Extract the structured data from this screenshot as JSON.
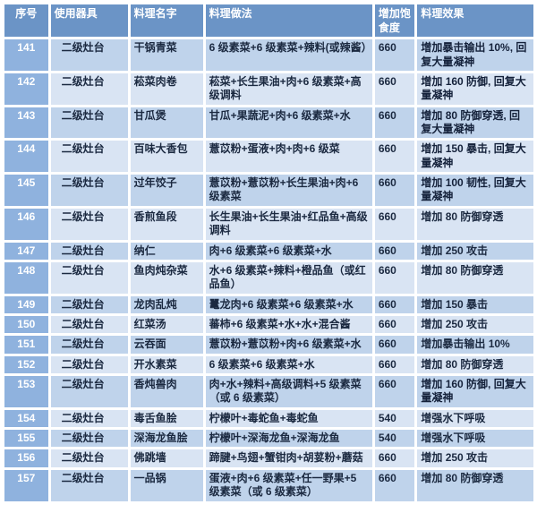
{
  "colors": {
    "header_bg": "#6b94c6",
    "row_number_bg": "#8fb2de",
    "row_odd_bg": "#bfd3eb",
    "row_even_bg": "#d9e4f3",
    "highlight_bg": "#ffff00",
    "text_dark": "#1b2940",
    "text_light": "#ffffff"
  },
  "table": {
    "headers": [
      "序号",
      "使用器具",
      "料理名字",
      "料理做法",
      "增加饱食度",
      "料理效果"
    ],
    "rows": [
      {
        "id": "141",
        "equipment": "二级灶台",
        "name": "干锅青菜",
        "recipe": "6 级素菜+6 级素菜+辣料(或辣酱）",
        "satiety": "660",
        "effect": "增加暴击输出 10%, 回复大量凝神",
        "highlighted": true
      },
      {
        "id": "142",
        "equipment": "二级灶台",
        "name": "菘菜肉卷",
        "recipe": "菘菜+长生果油+肉+6 级素菜+高级调料",
        "satiety": "660",
        "effect": "增加 160 防御, 回复大量凝神",
        "highlighted": true
      },
      {
        "id": "143",
        "equipment": "二级灶台",
        "name": "甘瓜煲",
        "recipe": "甘瓜+果蔬泥+肉+6 级素菜+水",
        "satiety": "660",
        "effect": "增加 80 防御穿透, 回复大量凝神",
        "highlighted": true
      },
      {
        "id": "144",
        "equipment": "二级灶台",
        "name": "百味大香包",
        "recipe": "薏苡粉+蛋液+肉+肉+6 级菜",
        "satiety": "660",
        "effect": "增加 150 暴击, 回复大量凝神",
        "highlighted": true
      },
      {
        "id": "145",
        "equipment": "二级灶台",
        "name": "过年饺子",
        "recipe": "薏苡粉+薏苡粉+长生果油+肉+6 级素菜",
        "satiety": "660",
        "effect": "增加 100 韧性, 回复大量凝神",
        "highlighted": true
      },
      {
        "id": "146",
        "equipment": "二级灶台",
        "name": "香煎鱼段",
        "recipe": "长生果油+长生果油+红品鱼+高级调料",
        "satiety": "660",
        "effect": "增加 80 防御穿透",
        "highlighted": false
      },
      {
        "id": "147",
        "equipment": "二级灶台",
        "name": "纳仁",
        "recipe": "肉+6 级素菜+6 级素菜+水",
        "satiety": "660",
        "effect": "增加 250 攻击",
        "highlighted": false
      },
      {
        "id": "148",
        "equipment": "二级灶台",
        "name": "鱼肉炖杂菜",
        "recipe": "水+6 级素菜+辣料+橙品鱼（或红品鱼）",
        "satiety": "660",
        "effect": "增加 80 防御穿透",
        "highlighted": false
      },
      {
        "id": "149",
        "equipment": "二级灶台",
        "name": "龙肉乱炖",
        "recipe": "鼍龙肉+6 级素菜+6 级素菜+水",
        "satiety": "660",
        "effect": "增加 150 暴击",
        "highlighted": false
      },
      {
        "id": "150",
        "equipment": "二级灶台",
        "name": "红菜汤",
        "recipe": "蕃柿+6 级素菜+水+水+混合酱",
        "satiety": "660",
        "effect": "增加 250 攻击",
        "highlighted": false
      },
      {
        "id": "151",
        "equipment": "二级灶台",
        "name": "云吞面",
        "recipe": "薏苡粉+薏苡粉+肉+6 级素菜+水",
        "satiety": "660",
        "effect": "增加暴击输出 10%",
        "highlighted": false
      },
      {
        "id": "152",
        "equipment": "二级灶台",
        "name": "开水素菜",
        "recipe": "6 级素菜+6 级素菜+水",
        "satiety": "660",
        "effect": "增加 80 防御穿透",
        "highlighted": false
      },
      {
        "id": "153",
        "equipment": "二级灶台",
        "name": "香炖兽肉",
        "recipe": "肉+水+辣料+高级调料+5 级素菜（或 6 级素菜）",
        "satiety": "660",
        "effect": "增加 160 防御, 回复大量凝神",
        "highlighted": true
      },
      {
        "id": "154",
        "equipment": "二级灶台",
        "name": "毒舌鱼脍",
        "recipe": "柠檬叶+毒蛇鱼+毒蛇鱼",
        "satiety": "540",
        "effect": "增强水下呼吸",
        "highlighted": false
      },
      {
        "id": "155",
        "equipment": "二级灶台",
        "name": "深海龙鱼脍",
        "recipe": "柠檬叶+深海龙鱼+深海龙鱼",
        "satiety": "540",
        "effect": "增强水下呼吸",
        "highlighted": false
      },
      {
        "id": "156",
        "equipment": "二级灶台",
        "name": "佛跳墙",
        "recipe": "蹄腱+鸟翅+蟹钳肉+胡荽粉+蘑菇",
        "satiety": "660",
        "effect": "增加 250 攻击",
        "highlighted": false
      },
      {
        "id": "157",
        "equipment": "二级灶台",
        "name": "一品锅",
        "recipe": "蛋液+肉+6 级素菜+任一野果+5 级素菜（或 6 级素菜）",
        "satiety": "660",
        "effect": "增加 80 防御穿透",
        "highlighted": false
      }
    ]
  }
}
